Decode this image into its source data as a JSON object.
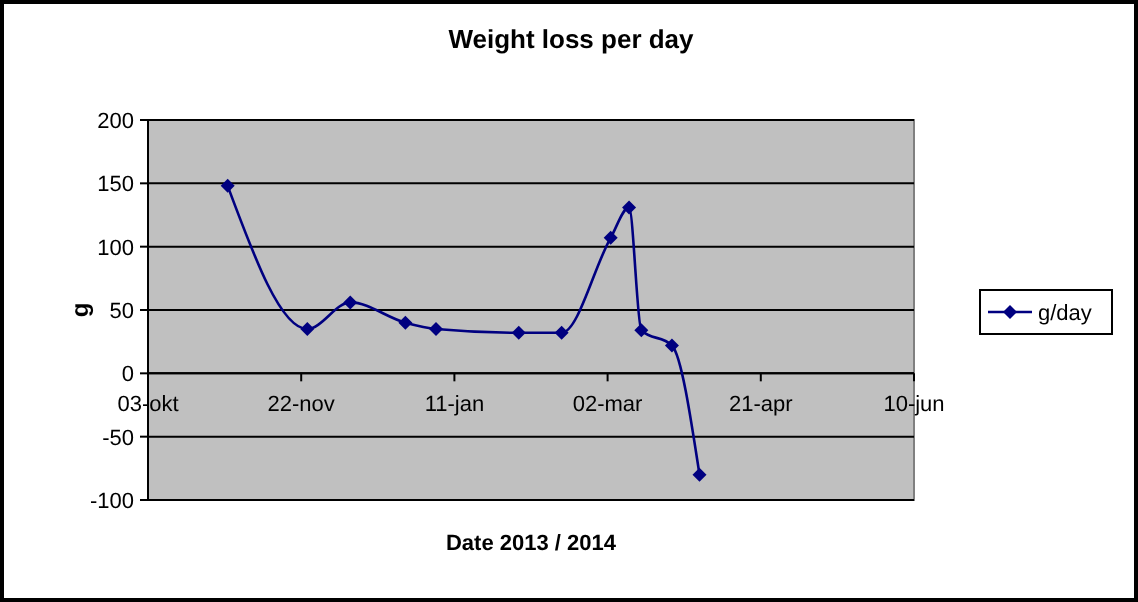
{
  "chart_data": {
    "type": "line",
    "title": "Weight loss per day",
    "xlabel": "Date 2013 / 2014",
    "ylabel": "g",
    "x": [
      "2013-10-29",
      "2013-11-24",
      "2013-12-08",
      "2013-12-26",
      "2014-01-05",
      "2014-02-01",
      "2014-02-15",
      "2014-03-03",
      "2014-03-09",
      "2014-03-13",
      "2014-03-23",
      "2014-04-01"
    ],
    "series": [
      {
        "name": "g/day",
        "color": "#000080",
        "values": [
          148,
          35,
          56,
          40,
          35,
          32,
          32,
          107,
          131,
          34,
          22,
          -80
        ]
      }
    ],
    "xlim": [
      "2013-10-03",
      "2014-06-10"
    ],
    "xticks": [
      {
        "value": "2013-10-03",
        "label": "03-okt"
      },
      {
        "value": "2013-11-22",
        "label": "22-nov"
      },
      {
        "value": "2014-01-11",
        "label": "11-jan"
      },
      {
        "value": "2014-03-02",
        "label": "02-mar"
      },
      {
        "value": "2014-04-21",
        "label": "21-apr"
      },
      {
        "value": "2014-06-10",
        "label": "10-jun"
      }
    ],
    "ylim": [
      -100,
      200
    ],
    "yticks": [
      -100,
      -50,
      0,
      50,
      100,
      150,
      200
    ],
    "grid": "y",
    "legend": "right",
    "marker": "diamond",
    "line_style": "solid"
  }
}
